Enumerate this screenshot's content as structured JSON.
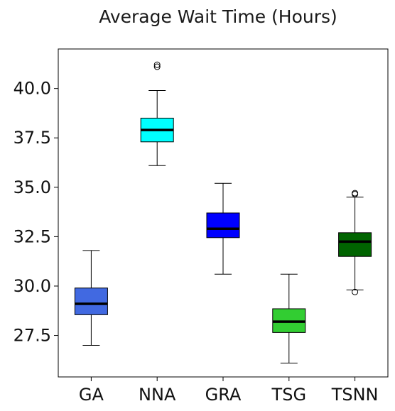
{
  "chart_data": {
    "type": "box",
    "title": "Average Wait Time (Hours)",
    "xlabel": "",
    "ylabel": "",
    "ylim": [
      25.4,
      42.0
    ],
    "yticks": [
      27.5,
      30.0,
      32.5,
      35.0,
      37.5,
      40.0
    ],
    "ytick_labels": [
      "27.5",
      "30.0",
      "32.5",
      "35.0",
      "37.5",
      "40.0"
    ],
    "categories": [
      "GA",
      "NNA",
      "GRA",
      "TSG",
      "TSNN"
    ],
    "grid": false,
    "boxes": [
      {
        "name": "GA",
        "whisker_low": 27.0,
        "q1": 28.55,
        "median": 29.1,
        "q3": 29.9,
        "whisker_high": 31.8,
        "outliers": [],
        "color": "#4169e1"
      },
      {
        "name": "NNA",
        "whisker_low": 36.1,
        "q1": 37.3,
        "median": 37.9,
        "q3": 38.5,
        "whisker_high": 39.9,
        "outliers": [
          41.1,
          41.2
        ],
        "color": "#00ffff"
      },
      {
        "name": "GRA",
        "whisker_low": 30.6,
        "q1": 32.45,
        "median": 32.9,
        "q3": 33.7,
        "whisker_high": 35.2,
        "outliers": [],
        "color": "#0000ff"
      },
      {
        "name": "TSG",
        "whisker_low": 26.1,
        "q1": 27.65,
        "median": 28.2,
        "q3": 28.85,
        "whisker_high": 30.6,
        "outliers": [],
        "color": "#32cd32"
      },
      {
        "name": "TSNN",
        "whisker_low": 29.8,
        "q1": 31.5,
        "median": 32.25,
        "q3": 32.7,
        "whisker_high": 34.5,
        "outliers": [
          29.7,
          34.65,
          34.7
        ],
        "color": "#006400"
      }
    ]
  }
}
